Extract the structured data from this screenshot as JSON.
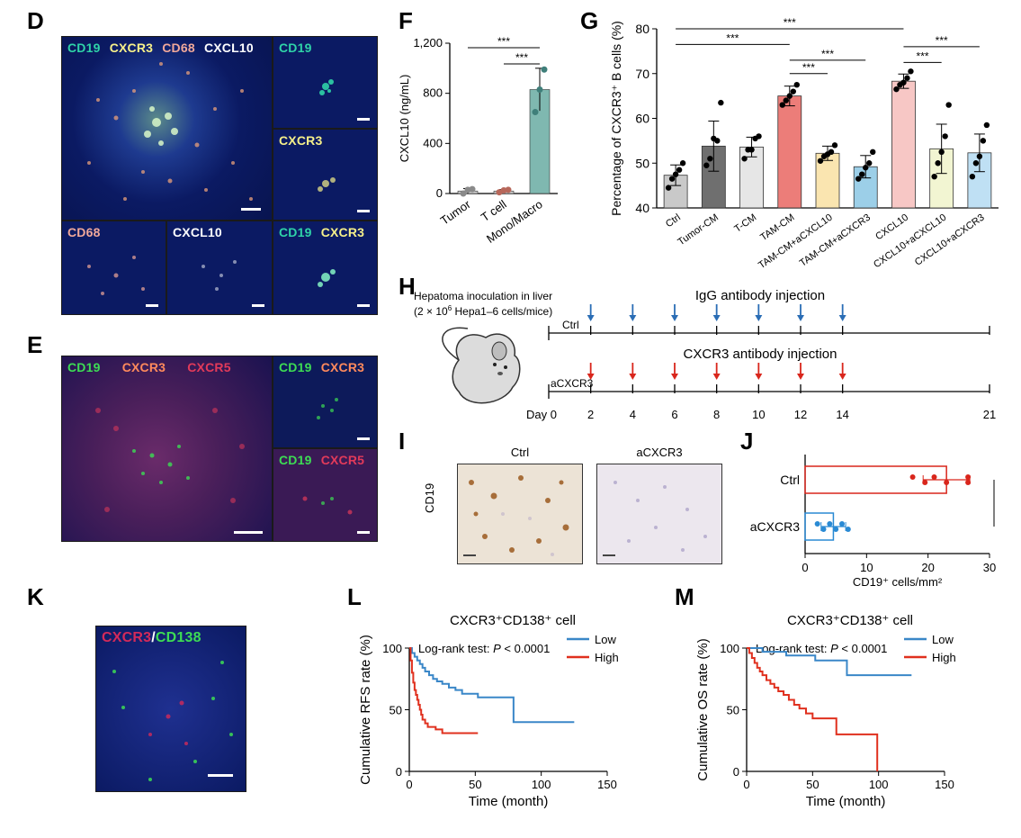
{
  "panels": {
    "D": "D",
    "E": "E",
    "F": "F",
    "G": "G",
    "H": "H",
    "I": "I",
    "J": "J",
    "K": "K",
    "L": "L",
    "M": "M"
  },
  "panel_d": {
    "main_labels": [
      {
        "text": "CD19",
        "color": "#2fd3a8"
      },
      {
        "text": "CXCR3",
        "color": "#f6f08a"
      },
      {
        "text": "CD68",
        "color": "#f0a89a"
      },
      {
        "text": "CXCL10",
        "color": "#ffffff"
      }
    ],
    "tile_cd19": "CD19",
    "tile_cxcr3": "CXCR3",
    "tile_cd68": "CD68",
    "tile_cxcl10": "CXCL10",
    "tile_merge_a": "CD19",
    "tile_merge_b": "CXCR3"
  },
  "panel_e": {
    "main_labels": [
      {
        "text": "CD19",
        "color": "#3ddc54"
      },
      {
        "text": "CXCR3",
        "color": "#ff8a5c"
      },
      {
        "text": "CXCR5",
        "color": "#e23a5a"
      }
    ],
    "tile1_a": "CD19",
    "tile1_b": "CXCR3",
    "tile2_a": "CD19",
    "tile2_b": "CXCR5"
  },
  "panel_k": {
    "label_a": "CXCR3",
    "label_sep": "/",
    "label_b": "CD138"
  },
  "panel_h": {
    "inoculation_line1": "Hepatoma inoculation in liver",
    "inoculation_line2": "(2 × 10",
    "inoculation_sup": "6",
    "inoculation_line3": " Hepa1–6 cells/mice)",
    "igg_title": "IgG antibody injection",
    "cxcr3_title": "CXCR3 antibody injection",
    "ctrl_label": "Ctrl",
    "acxcr3_label": "aCXCR3",
    "day_label": "Day 0",
    "days": [
      "2",
      "4",
      "6",
      "8",
      "10",
      "12",
      "14",
      "21"
    ],
    "arrow_color_igg": "#2a6db5",
    "arrow_color_cxcr3": "#d9261c"
  },
  "panel_i": {
    "col1": "Ctrl",
    "col2": "aCXCR3",
    "row": "CD19"
  },
  "chart_data": [
    {
      "id": "F",
      "type": "bar",
      "categories": [
        "Tumor",
        "T cell",
        "Mono/Macro"
      ],
      "values": [
        20,
        20,
        830
      ],
      "errors": [
        20,
        12,
        170
      ],
      "points": [
        [
          0,
          30,
          35
        ],
        [
          10,
          25,
          30
        ],
        [
          650,
          830,
          990
        ]
      ],
      "colors": [
        "#cfcfcf",
        "#cfcfcf",
        "#7fb8b0"
      ],
      "point_colors": [
        "#8a8a8a",
        "#b7675a",
        "#3f7f7a"
      ],
      "ylabel": "CXCL10 (ng/mL)",
      "ylim": [
        0,
        1200
      ],
      "yticks": [
        "0",
        "400",
        "800",
        "1,200"
      ],
      "sig": [
        "***",
        "***"
      ]
    },
    {
      "id": "G",
      "type": "bar",
      "categories": [
        "Ctrl",
        "Tumor-CM",
        "T-CM",
        "TAM-CM",
        "TAM-CM+aCXCL10",
        "TAM-CM+aCXCR3",
        "CXCL10",
        "CXCL10+aCXCL10",
        "CXCL10+aCXCR3"
      ],
      "values": [
        47.3,
        53.8,
        53.6,
        65.0,
        52.2,
        49.2,
        68.3,
        53.2,
        52.3
      ],
      "errors": [
        2.3,
        5.6,
        2.2,
        2.2,
        1.6,
        2.5,
        1.6,
        5.5,
        4.2
      ],
      "points": [
        [
          44.5,
          46.5,
          47.5,
          48.5,
          50.0
        ],
        [
          49.5,
          51.0,
          55.5,
          55.0,
          63.5
        ],
        [
          51.0,
          53.0,
          53.0,
          55.5,
          56.0
        ],
        [
          63.0,
          64.0,
          65.0,
          66.0,
          67.5
        ],
        [
          50.5,
          51.5,
          52.0,
          52.5,
          54.0
        ],
        [
          46.5,
          47.5,
          49.0,
          50.0,
          52.5
        ],
        [
          66.5,
          67.5,
          68.0,
          69.0,
          70.5
        ],
        [
          47.0,
          50.0,
          52.5,
          56.0,
          63.0
        ],
        [
          47.0,
          50.0,
          51.5,
          55.0,
          58.5
        ]
      ],
      "colors": [
        "#c9c9c9",
        "#6f6f6f",
        "#e6e6e6",
        "#ec7d79",
        "#fae5b0",
        "#9ccfe8",
        "#f7c7c5",
        "#f2f5d2",
        "#bfe0f4"
      ],
      "ylabel": "Percentage of CXCR3⁺ B cells (%)",
      "ylim": [
        40,
        80
      ],
      "yticks": [
        "40",
        "50",
        "60",
        "70",
        "80"
      ],
      "sig": [
        "***",
        "***",
        "***",
        "***",
        "***",
        "***"
      ]
    },
    {
      "id": "J",
      "type": "bar",
      "orientation": "horizontal",
      "categories": [
        "Ctrl",
        "aCXCR3"
      ],
      "values": [
        23.0,
        4.6
      ],
      "errors": [
        3.8,
        2.0
      ],
      "points": [
        [
          17.5,
          19.5,
          21.0,
          23.0,
          26.5,
          26.5
        ],
        [
          2.0,
          3.0,
          4.0,
          5.0,
          6.0,
          7.0
        ]
      ],
      "colors": [
        "#d9261c",
        "#2a8ad4"
      ],
      "xlabel": "CD19⁺ cells/mm²",
      "xlim": [
        0,
        30
      ],
      "xticks": [
        "0",
        "10",
        "20",
        "30"
      ],
      "sig": "***"
    },
    {
      "id": "L",
      "type": "line",
      "title": "CXCR3⁺CD138⁺ cell",
      "annotation_pre": "Log-rank test: ",
      "annotation_p": "P",
      "annotation_post": " < 0.0001",
      "xlabel": "Time (month)",
      "ylabel": "Cumulative RFS rate (%)",
      "xlim": [
        0,
        150
      ],
      "ylim": [
        0,
        100
      ],
      "xticks": [
        "0",
        "50",
        "100",
        "150"
      ],
      "yticks": [
        "0",
        "50",
        "100"
      ],
      "series": [
        {
          "name": "Low",
          "color": "#3a87c8",
          "x": [
            0,
            2,
            4,
            6,
            8,
            10,
            12,
            15,
            18,
            21,
            25,
            30,
            35,
            40,
            52,
            60,
            78,
            79,
            125
          ],
          "y": [
            100,
            96,
            93,
            90,
            87,
            84,
            81,
            78,
            75,
            73,
            71,
            68,
            66,
            63,
            60,
            60,
            60,
            40,
            40
          ]
        },
        {
          "name": "High",
          "color": "#e0301e",
          "x": [
            0,
            1,
            2,
            3,
            4,
            5,
            6,
            7,
            8,
            9,
            10,
            12,
            14,
            20,
            25,
            52
          ],
          "y": [
            100,
            90,
            80,
            72,
            66,
            62,
            58,
            54,
            50,
            46,
            42,
            39,
            36,
            34,
            31,
            31
          ]
        }
      ]
    },
    {
      "id": "M",
      "type": "line",
      "title": "CXCR3⁺CD138⁺ cell",
      "annotation_pre": "Log-rank test: ",
      "annotation_p": "P",
      "annotation_post": " < 0.0001",
      "xlabel": "Time (month)",
      "ylabel": "Cumulative OS rate (%)",
      "xlim": [
        0,
        150
      ],
      "ylim": [
        0,
        100
      ],
      "xticks": [
        "0",
        "50",
        "100",
        "150"
      ],
      "yticks": [
        "0",
        "50",
        "100"
      ],
      "series": [
        {
          "name": "Low",
          "color": "#3a87c8",
          "x": [
            0,
            10,
            12,
            25,
            30,
            50,
            52,
            75,
            76,
            125
          ],
          "y": [
            100,
            100,
            97,
            97,
            94,
            94,
            90,
            90,
            78,
            78
          ]
        },
        {
          "name": "High",
          "color": "#e0301e",
          "x": [
            0,
            2,
            4,
            6,
            8,
            10,
            12,
            15,
            18,
            21,
            24,
            28,
            32,
            36,
            40,
            45,
            50,
            60,
            68,
            70,
            98,
            99
          ],
          "y": [
            100,
            96,
            92,
            88,
            84,
            81,
            78,
            74,
            71,
            68,
            65,
            62,
            58,
            54,
            51,
            47,
            43,
            43,
            30,
            30,
            30,
            0
          ]
        }
      ]
    }
  ]
}
